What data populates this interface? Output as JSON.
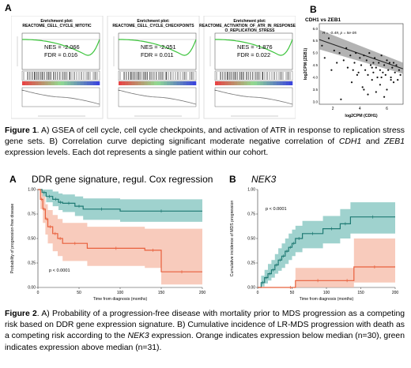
{
  "figure1": {
    "panel_a": {
      "letter": "A",
      "gsea": [
        {
          "title": "Enrichment plot:",
          "subtitle": "REACTOME_CELL_CYCLE_MITOTIC",
          "subtitle2": "",
          "nes": "NES = -2.066",
          "fdr": "FDR = 0.016"
        },
        {
          "title": "Enrichment plot:",
          "subtitle": "REACTOME_CELL_CYCLE_CHECKPOINTS",
          "subtitle2": "",
          "nes": "NES = -2.051",
          "fdr": "FDR = 0.011"
        },
        {
          "title": "Enrichment plot:",
          "subtitle": "REACTOME_ACTIVATION_OF_ATR_IN_RESPONSE_T",
          "subtitle2": "O_REPLICATION_STRESS",
          "nes": "NES = -1.876",
          "fdr": "FDR = 0.022"
        }
      ]
    },
    "panel_b": {
      "letter": "B",
      "title": "CDH1 vs ZEB1",
      "stats": "R = -0.49, p = 5e-05",
      "xlabel": "log2CPM (CDH1)",
      "ylabel": "log2CPM (ZEB1)",
      "xticks": [
        "2",
        "4",
        "6"
      ],
      "yticks": [
        "3.0",
        "3.5",
        "4.0",
        "4.5",
        "5.0",
        "5.5",
        "6.0"
      ]
    },
    "caption": {
      "label": "Figure 1",
      "t1": ". A) GSEA of cell cycle, cell cycle checkpoints, and activation of ATR in response to replication stress gene sets. B) Correlation curve depicting significant moderate negative correlation of ",
      "gene1": "CDH1",
      "t2": " and ",
      "gene2": "ZEB1",
      "t3": " expression levels. Each dot represents a single patient within our cohort."
    }
  },
  "figure2": {
    "panel_a": {
      "letter": "A",
      "title": "DDR gene signature, regul. Cox regression",
      "ylabel": "Probability of progression-free disease",
      "xlabel": "Time from diagnosis (months)",
      "pvalue": "p < 0.0001",
      "xticks": [
        "0",
        "50",
        "100",
        "150",
        "200"
      ],
      "yticks": [
        "0.00",
        "0.25",
        "0.50",
        "0.75",
        "1.00"
      ]
    },
    "panel_b": {
      "letter": "B",
      "title": "NEK3",
      "ylabel": "Cumulative incidence of MDS progression",
      "xlabel": "Time from diagnosis (months)",
      "pvalue": "p < 0.0001",
      "xticks": [
        "0",
        "50",
        "100",
        "150",
        "200"
      ],
      "yticks": [
        "0.00",
        "0.25",
        "0.50",
        "0.75",
        "1.00"
      ]
    },
    "caption": {
      "label": "Figure 2",
      "t1": ". A) Probability of a progression-free disease with mortality prior to MDS progression as a competing risk based on DDR gene expression signature. B) Cumulative incidence of LR-MDS progression with death as a competing risk according to the ",
      "gene": "NEK3",
      "t2": " expression. Orange indicates expression below median (n=30), green indicates expression above median (n=31)."
    }
  },
  "colors": {
    "orange": "#e8603c",
    "orange_fill": "#f5b9a6",
    "green": "#1f7a73",
    "green_fill": "#7fc3bd",
    "gsea_green": "#3cc43c"
  },
  "chart_data": [
    {
      "type": "scatter",
      "title": "CDH1 vs ZEB1",
      "xlabel": "log2CPM (CDH1)",
      "ylabel": "log2CPM (ZEB1)",
      "xlim": [
        1,
        7.2
      ],
      "ylim": [
        2.9,
        6.2
      ],
      "stats": "R = -0.49, p = 5e-05",
      "fit": {
        "x": [
          1,
          7.2
        ],
        "y": [
          5.55,
          4.35
        ],
        "band_low": [
          5.15,
          4.15
        ],
        "band_high": [
          5.95,
          4.6
        ]
      },
      "x": [
        1.2,
        1.4,
        1.7,
        1.9,
        2.1,
        2.3,
        2.5,
        2.6,
        2.8,
        3.0,
        3.1,
        3.3,
        3.4,
        3.6,
        3.7,
        3.9,
        4.0,
        4.1,
        4.2,
        4.3,
        4.4,
        4.5,
        4.6,
        4.7,
        4.8,
        4.9,
        5.0,
        5.0,
        5.1,
        5.2,
        5.3,
        5.4,
        5.5,
        5.5,
        5.6,
        5.7,
        5.8,
        5.9,
        6.0,
        6.0,
        6.1,
        6.2,
        6.3,
        6.4,
        6.5,
        6.6,
        6.7,
        6.8,
        6.9,
        7.0,
        4.6,
        5.2,
        5.8,
        3.8,
        6.3,
        4.9,
        5.6,
        6.5,
        3.5,
        4.3
      ],
      "y": [
        5.3,
        4.8,
        5.6,
        4.3,
        5.1,
        4.6,
        5.0,
        3.1,
        4.7,
        5.2,
        4.4,
        4.9,
        3.8,
        4.6,
        5.0,
        4.2,
        4.8,
        4.5,
        3.6,
        4.9,
        4.3,
        4.7,
        4.1,
        5.0,
        4.5,
        3.9,
        4.6,
        4.2,
        4.8,
        4.4,
        4.0,
        4.6,
        4.3,
        3.7,
        4.9,
        4.2,
        4.5,
        4.1,
        4.7,
        3.5,
        4.3,
        4.6,
        4.0,
        4.4,
        3.8,
        4.2,
        4.5,
        3.9,
        4.3,
        4.1,
        3.3,
        3.4,
        3.2,
        4.1,
        3.9,
        4.4,
        4.0,
        4.6,
        4.3,
        3.5
      ]
    },
    {
      "type": "line",
      "title": "DDR gene signature, regul. Cox regression",
      "xlabel": "Time from diagnosis (months)",
      "ylabel": "Probability of progression-free disease",
      "xlim": [
        0,
        200
      ],
      "ylim": [
        0,
        1
      ],
      "series": [
        {
          "color": "green",
          "x": [
            0,
            5,
            10,
            18,
            25,
            30,
            45,
            55,
            100,
            200
          ],
          "y": [
            1.0,
            0.97,
            0.93,
            0.9,
            0.87,
            0.86,
            0.83,
            0.8,
            0.78,
            0.78
          ],
          "lower": [
            1.0,
            0.93,
            0.87,
            0.83,
            0.79,
            0.77,
            0.73,
            0.69,
            0.67,
            0.67
          ],
          "upper": [
            1.0,
            1.0,
            1.0,
            0.98,
            0.96,
            0.95,
            0.93,
            0.91,
            0.9,
            0.9
          ]
        },
        {
          "color": "orange",
          "x": [
            0,
            3,
            6,
            9,
            12,
            18,
            24,
            30,
            60,
            130,
            150,
            200
          ],
          "y": [
            1.0,
            0.9,
            0.8,
            0.7,
            0.62,
            0.55,
            0.5,
            0.45,
            0.4,
            0.38,
            0.16,
            0.16
          ],
          "lower": [
            1.0,
            0.8,
            0.66,
            0.54,
            0.45,
            0.37,
            0.32,
            0.27,
            0.22,
            0.2,
            0.03,
            0.03
          ],
          "upper": [
            1.0,
            1.0,
            0.93,
            0.85,
            0.79,
            0.74,
            0.7,
            0.66,
            0.62,
            0.6,
            0.6,
            0.6
          ]
        }
      ]
    },
    {
      "type": "line",
      "title": "NEK3",
      "xlabel": "Time from diagnosis (months)",
      "ylabel": "Cumulative incidence of MDS progression",
      "xlim": [
        0,
        200
      ],
      "ylim": [
        0,
        1
      ],
      "series": [
        {
          "color": "green",
          "x": [
            0,
            5,
            10,
            15,
            20,
            25,
            30,
            35,
            40,
            45,
            50,
            55,
            65,
            95,
            120,
            135,
            200
          ],
          "y": [
            0.0,
            0.05,
            0.1,
            0.14,
            0.18,
            0.23,
            0.28,
            0.32,
            0.37,
            0.41,
            0.45,
            0.5,
            0.55,
            0.6,
            0.65,
            0.72,
            0.72
          ],
          "lower": [
            0.0,
            0.01,
            0.04,
            0.07,
            0.1,
            0.14,
            0.17,
            0.2,
            0.24,
            0.28,
            0.32,
            0.36,
            0.4,
            0.45,
            0.5,
            0.55,
            0.55
          ],
          "upper": [
            0.0,
            0.12,
            0.18,
            0.24,
            0.28,
            0.34,
            0.4,
            0.45,
            0.5,
            0.55,
            0.59,
            0.63,
            0.68,
            0.73,
            0.8,
            0.87,
            0.87
          ]
        },
        {
          "color": "orange",
          "x": [
            0,
            40,
            55,
            120,
            140,
            200
          ],
          "y": [
            0.0,
            0.0,
            0.07,
            0.07,
            0.21,
            0.21
          ],
          "lower": [
            0.0,
            0.0,
            0.0,
            0.0,
            0.05,
            0.05
          ],
          "upper": [
            0.0,
            0.0,
            0.2,
            0.2,
            0.5,
            0.5
          ]
        }
      ]
    }
  ]
}
